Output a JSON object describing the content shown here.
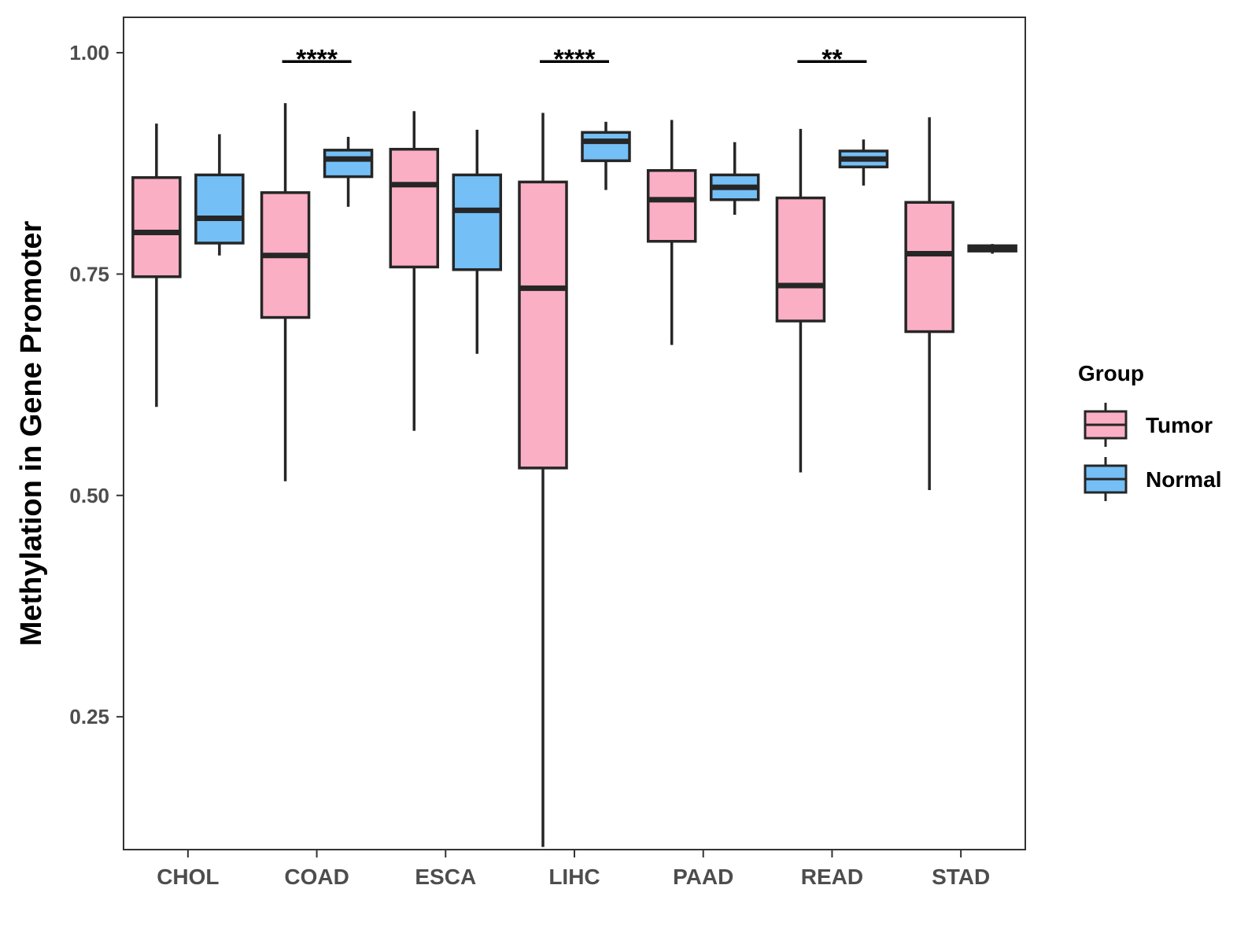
{
  "chart_data": {
    "type": "boxplot",
    "ylabel": "Methylation in Gene Promoter",
    "xlabel": "",
    "ylim": [
      0.1,
      1.04
    ],
    "y_ticks": [
      {
        "value": 0.25,
        "label": "0.25"
      },
      {
        "value": 0.5,
        "label": "0.50"
      },
      {
        "value": 0.75,
        "label": "0.75"
      },
      {
        "value": 1.0,
        "label": "1.00"
      }
    ],
    "categories": [
      "CHOL",
      "COAD",
      "ESCA",
      "LIHC",
      "PAAD",
      "READ",
      "STAD"
    ],
    "legend": {
      "title": "Group",
      "position": "right",
      "entries": [
        {
          "name": "Tumor",
          "color": "#FBAFC4"
        },
        {
          "name": "Normal",
          "color": "#74BFF6"
        }
      ]
    },
    "series": [
      {
        "name": "Tumor",
        "color": "#FBAFC4",
        "boxes": [
          {
            "min": 0.6,
            "q1": 0.747,
            "median": 0.797,
            "q3": 0.859,
            "max": 0.92
          },
          {
            "min": 0.516,
            "q1": 0.701,
            "median": 0.771,
            "q3": 0.842,
            "max": 0.943
          },
          {
            "min": 0.573,
            "q1": 0.758,
            "median": 0.851,
            "q3": 0.891,
            "max": 0.934
          },
          {
            "min": 0.103,
            "q1": 0.531,
            "median": 0.734,
            "q3": 0.854,
            "max": 0.932
          },
          {
            "min": 0.67,
            "q1": 0.787,
            "median": 0.834,
            "q3": 0.867,
            "max": 0.924
          },
          {
            "min": 0.526,
            "q1": 0.697,
            "median": 0.737,
            "q3": 0.836,
            "max": 0.914
          },
          {
            "min": 0.506,
            "q1": 0.685,
            "median": 0.773,
            "q3": 0.831,
            "max": 0.927
          }
        ]
      },
      {
        "name": "Normal",
        "color": "#74BFF6",
        "boxes": [
          {
            "min": 0.771,
            "q1": 0.785,
            "median": 0.813,
            "q3": 0.862,
            "max": 0.908
          },
          {
            "min": 0.826,
            "q1": 0.86,
            "median": 0.88,
            "q3": 0.89,
            "max": 0.905
          },
          {
            "min": 0.66,
            "q1": 0.755,
            "median": 0.822,
            "q3": 0.862,
            "max": 0.913
          },
          {
            "min": 0.845,
            "q1": 0.878,
            "median": 0.9,
            "q3": 0.91,
            "max": 0.922
          },
          {
            "min": 0.817,
            "q1": 0.834,
            "median": 0.848,
            "q3": 0.862,
            "max": 0.899
          },
          {
            "min": 0.85,
            "q1": 0.871,
            "median": 0.88,
            "q3": 0.889,
            "max": 0.902
          },
          {
            "min": 0.773,
            "q1": 0.776,
            "median": 0.779,
            "q3": 0.782,
            "max": 0.784
          }
        ]
      }
    ],
    "annotations": [
      {
        "category": "COAD",
        "label": "****",
        "y": 0.99
      },
      {
        "category": "LIHC",
        "label": "****",
        "y": 0.99
      },
      {
        "category": "READ",
        "label": "**",
        "y": 0.99
      }
    ]
  }
}
